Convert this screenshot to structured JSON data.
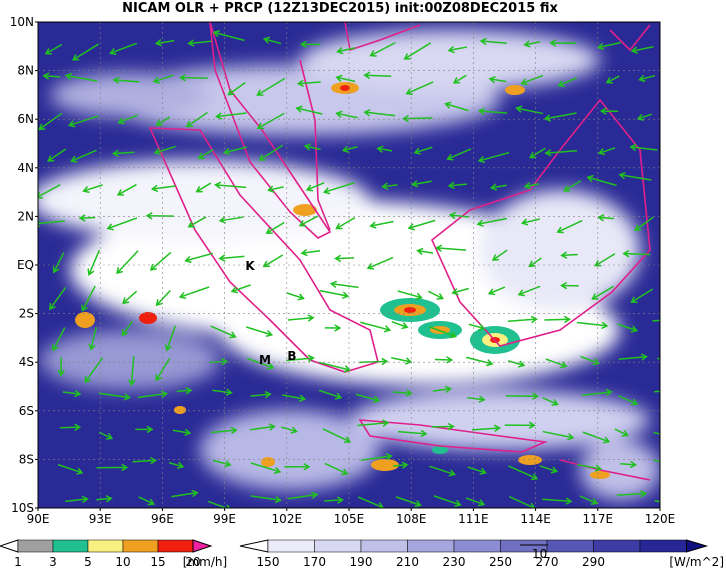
{
  "title": "NICAM OLR + PRCP (12Z13DEC2015) init:00Z08DEC2015 fix",
  "map": {
    "lat_labels": [
      "10N",
      "8N",
      "6N",
      "4N",
      "2N",
      "EQ",
      "2S",
      "4S",
      "6S",
      "8S",
      "10S"
    ],
    "lon_labels": [
      "90E",
      "93E",
      "96E",
      "99E",
      "102E",
      "105E",
      "108E",
      "111E",
      "114E",
      "117E",
      "120E"
    ],
    "places": [
      {
        "label": "K"
      },
      {
        "label": "M"
      },
      {
        "label": "B"
      }
    ],
    "vector_reference": "10"
  },
  "legend": {
    "precip": {
      "labels": [
        "1",
        "3",
        "5",
        "10",
        "15",
        "20"
      ],
      "unit": "[mm/h]"
    },
    "olr": {
      "labels": [
        "150",
        "170",
        "190",
        "210",
        "230",
        "250",
        "270",
        "290"
      ],
      "unit": "[W/m^2]"
    }
  }
}
